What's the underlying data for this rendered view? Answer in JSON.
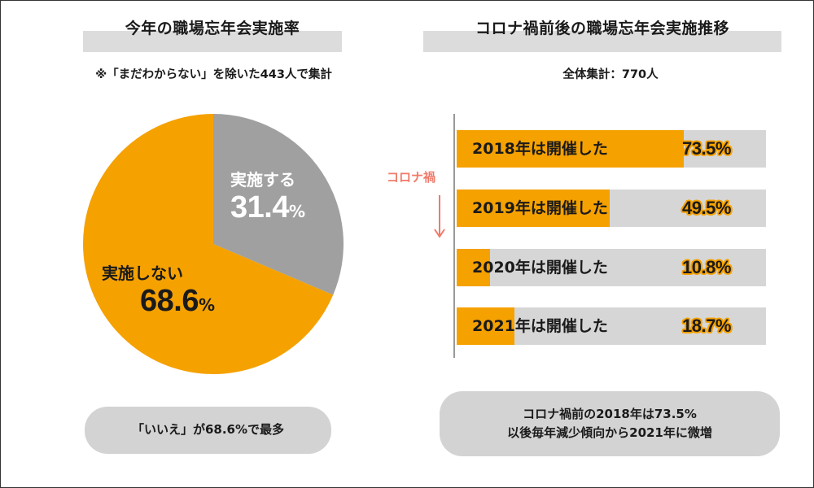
{
  "left": {
    "title": "今年の職場忘年会実施率",
    "note": "※「まだわからない」を除いた443人で集計",
    "summary": "「いいえ」が68.6%で最多"
  },
  "right": {
    "title": "コロナ禍前後の職場忘年会実施推移",
    "note": "全体集計：770人",
    "covid_label": "コロナ禍",
    "summary_line1": "コロナ禍前の2018年は73.5%",
    "summary_line2": "以後毎年減少傾向から2021年に微増"
  },
  "colors": {
    "orange": "#f5a100",
    "gray": "#a0a0a0",
    "track": "#d6d6d6",
    "covid": "#f07a6a"
  },
  "chart_data": [
    {
      "type": "pie",
      "title": "今年の職場忘年会実施率",
      "slices": [
        {
          "label": "実施する",
          "value": 31.4,
          "value_text": "31.4",
          "unit": "%",
          "color": "#a0a0a0"
        },
        {
          "label": "実施しない",
          "value": 68.6,
          "value_text": "68.6",
          "unit": "%",
          "color": "#f5a100"
        }
      ]
    },
    {
      "type": "bar",
      "orientation": "horizontal",
      "title": "コロナ禍前後の職場忘年会実施推移",
      "xlim": [
        0,
        100
      ],
      "categories": [
        "2018年は開催した",
        "2019年は開催した",
        "2020年は開催した",
        "2021年は開催した"
      ],
      "values": [
        73.5,
        49.5,
        10.8,
        18.7
      ],
      "value_labels": [
        "73.5%",
        "49.5%",
        "10.8%",
        "18.7%"
      ]
    }
  ]
}
